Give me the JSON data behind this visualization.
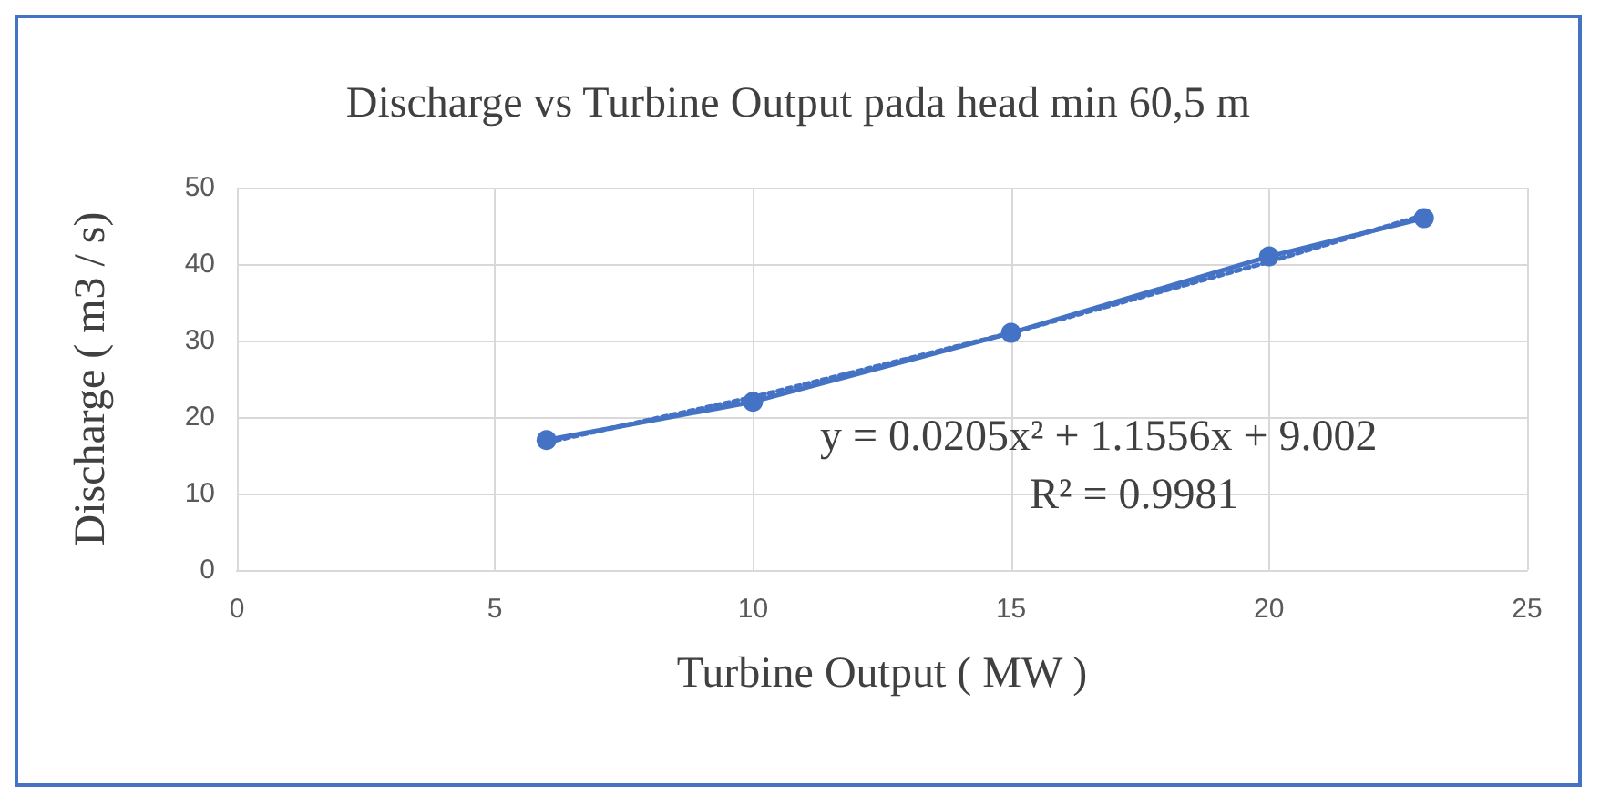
{
  "chart_data": {
    "type": "line",
    "title": "Discharge vs Turbine Output pada head min 60,5 m",
    "xlabel": "Turbine Output ( MW )",
    "ylabel": "Discharge ( m3 / s)",
    "xlim": [
      0,
      25
    ],
    "xticks": [
      0,
      5,
      10,
      15,
      20,
      25
    ],
    "ylim": [
      0,
      50
    ],
    "yticks": [
      0,
      10,
      20,
      30,
      40,
      50
    ],
    "grid": true,
    "marker": "circle",
    "line_style": "solid",
    "series": [
      {
        "color": "#4472c4",
        "x": [
          6,
          10,
          15,
          20,
          23
        ],
        "values": [
          17,
          22,
          31,
          41,
          46
        ]
      },
      {
        "color": "#4472c4",
        "x": [
          6,
          10,
          15,
          20,
          23
        ],
        "values": [
          16.7,
          22.6,
          31,
          40.3,
          46.4
        ],
        "marker": "none",
        "line_style": "dotted"
      }
    ],
    "annotations": [
      "y = 0.0205x² + 1.1556x + 9.002",
      "R² = 0.9981"
    ]
  }
}
